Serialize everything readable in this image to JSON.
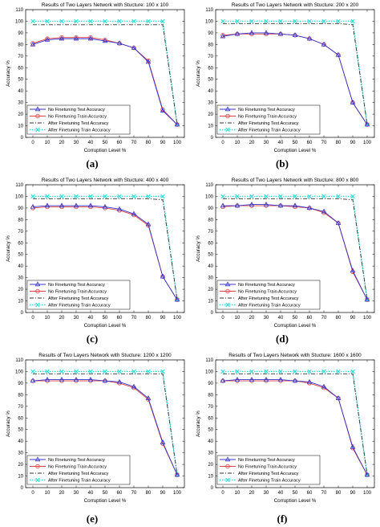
{
  "chart_data": [
    {
      "type": "line",
      "title": "Results of Two Layers Network with Stucture: 100 x 100",
      "xlabel": "Corruption Level %",
      "ylabel": "Accuracy %",
      "caption": "(a)",
      "xlim": [
        -5,
        105
      ],
      "ylim": [
        0,
        110
      ],
      "x": [
        0,
        10,
        20,
        30,
        40,
        50,
        60,
        70,
        80,
        90,
        100
      ],
      "series": [
        {
          "name": "No Finetuning Test Accuracy",
          "color": "#3333cc",
          "marker": "triangle",
          "dash": "solid",
          "values": [
            80,
            84,
            85,
            85,
            85,
            83,
            81,
            77,
            65,
            23,
            11
          ]
        },
        {
          "name": "No Finetuning Train Accuracy",
          "color": "#e04040",
          "marker": "circle",
          "dash": "solid",
          "values": [
            81,
            85,
            86,
            86,
            86,
            84,
            81,
            77,
            66,
            24,
            11
          ]
        },
        {
          "name": "After Finetuning Test Accuracy",
          "color": "#333333",
          "marker": "none",
          "dash": "dashdot",
          "values": [
            97,
            97,
            97,
            97,
            97,
            97,
            97,
            97,
            97,
            97,
            11
          ]
        },
        {
          "name": "After Finetuning Train Accuracy",
          "color": "#33dddd",
          "marker": "x",
          "dash": "dotted",
          "values": [
            100,
            100,
            100,
            100,
            100,
            100,
            100,
            100,
            100,
            100,
            11
          ]
        }
      ]
    },
    {
      "type": "line",
      "title": "Results of Two Layers Network with Stucture: 200 x 200",
      "xlabel": "Corruption Level %",
      "ylabel": "Accuracy %",
      "caption": "(b)",
      "xlim": [
        -5,
        105
      ],
      "ylim": [
        0,
        110
      ],
      "x": [
        0,
        10,
        20,
        30,
        40,
        50,
        60,
        70,
        80,
        90,
        100
      ],
      "series": [
        {
          "name": "No Finetuning Test Accuracy",
          "color": "#3333cc",
          "marker": "triangle",
          "dash": "solid",
          "values": [
            87,
            89,
            90,
            90,
            89,
            88,
            85,
            80,
            71,
            30,
            11
          ]
        },
        {
          "name": "No Finetuning Train Accuracy",
          "color": "#e04040",
          "marker": "circle",
          "dash": "solid",
          "values": [
            88,
            89,
            89,
            89,
            89,
            88,
            85,
            80,
            71,
            30,
            11
          ]
        },
        {
          "name": "After Finetuning Test Accuracy",
          "color": "#333333",
          "marker": "none",
          "dash": "dashdot",
          "values": [
            98,
            98,
            98,
            98,
            98,
            98,
            98,
            98,
            98,
            97,
            11
          ]
        },
        {
          "name": "After Finetuning Train Accuracy",
          "color": "#33dddd",
          "marker": "x",
          "dash": "dotted",
          "values": [
            100,
            100,
            100,
            100,
            100,
            100,
            100,
            100,
            100,
            100,
            11
          ]
        }
      ]
    },
    {
      "type": "line",
      "title": "Results of Two Layers Network with Stucture: 400 x 400",
      "xlabel": "Corruption Level %",
      "ylabel": "Accuracy %",
      "caption": "(c)",
      "xlim": [
        -5,
        105
      ],
      "ylim": [
        0,
        110
      ],
      "x": [
        0,
        10,
        20,
        30,
        40,
        50,
        60,
        70,
        80,
        90,
        100
      ],
      "series": [
        {
          "name": "No Finetuning Test Accuracy",
          "color": "#3333cc",
          "marker": "triangle",
          "dash": "solid",
          "values": [
            91,
            92,
            92,
            92,
            92,
            91,
            89,
            85,
            76,
            31,
            11
          ]
        },
        {
          "name": "No Finetuning Train Accuracy",
          "color": "#e04040",
          "marker": "circle",
          "dash": "solid",
          "values": [
            90,
            91,
            91,
            91,
            91,
            90,
            88,
            84,
            75,
            31,
            11
          ]
        },
        {
          "name": "After Finetuning Test Accuracy",
          "color": "#333333",
          "marker": "none",
          "dash": "dashdot",
          "values": [
            98,
            98,
            98,
            98,
            98,
            98,
            98,
            98,
            98,
            97,
            11
          ]
        },
        {
          "name": "After Finetuning Train Accuracy",
          "color": "#33dddd",
          "marker": "x",
          "dash": "dotted",
          "values": [
            100,
            100,
            100,
            100,
            100,
            100,
            100,
            100,
            100,
            100,
            11
          ]
        }
      ]
    },
    {
      "type": "line",
      "title": "Results of Two Layers Network with Stucture: 800 x 800",
      "xlabel": "Corruption Level %",
      "ylabel": "Accuracy %",
      "caption": "(d)",
      "xlim": [
        -5,
        105
      ],
      "ylim": [
        0,
        110
      ],
      "x": [
        0,
        10,
        20,
        30,
        40,
        50,
        60,
        70,
        80,
        90,
        100
      ],
      "series": [
        {
          "name": "No Finetuning Test Accuracy",
          "color": "#3333cc",
          "marker": "triangle",
          "dash": "solid",
          "values": [
            92,
            92,
            93,
            93,
            92,
            92,
            90,
            87,
            77,
            36,
            11
          ]
        },
        {
          "name": "No Finetuning Train Accuracy",
          "color": "#e04040",
          "marker": "circle",
          "dash": "solid",
          "values": [
            91,
            92,
            92,
            92,
            92,
            91,
            90,
            86,
            77,
            35,
            11
          ]
        },
        {
          "name": "After Finetuning Test Accuracy",
          "color": "#333333",
          "marker": "none",
          "dash": "dashdot",
          "values": [
            98,
            98,
            98,
            98,
            98,
            98,
            98,
            98,
            98,
            97,
            11
          ]
        },
        {
          "name": "After Finetuning Train Accuracy",
          "color": "#33dddd",
          "marker": "x",
          "dash": "dotted",
          "values": [
            100,
            100,
            100,
            100,
            100,
            100,
            100,
            100,
            100,
            100,
            11
          ]
        }
      ]
    },
    {
      "type": "line",
      "title": "Results of Two Layers Network with Stucture: 1200 x 1200",
      "xlabel": "Corruption Level %",
      "ylabel": "Accuracy %",
      "caption": "(e)",
      "xlim": [
        -5,
        105
      ],
      "ylim": [
        0,
        110
      ],
      "x": [
        0,
        10,
        20,
        30,
        40,
        50,
        60,
        70,
        80,
        90,
        100
      ],
      "series": [
        {
          "name": "No Finetuning Test Accuracy",
          "color": "#3333cc",
          "marker": "triangle",
          "dash": "solid",
          "values": [
            92,
            93,
            93,
            93,
            93,
            92,
            91,
            87,
            77,
            39,
            11
          ]
        },
        {
          "name": "No Finetuning Train Accuracy",
          "color": "#e04040",
          "marker": "circle",
          "dash": "solid",
          "values": [
            92,
            92,
            92,
            92,
            92,
            92,
            90,
            86,
            76,
            38,
            11
          ]
        },
        {
          "name": "After Finetuning Test Accuracy",
          "color": "#333333",
          "marker": "none",
          "dash": "dashdot",
          "values": [
            98,
            98,
            98,
            98,
            98,
            98,
            98,
            98,
            98,
            98,
            11
          ]
        },
        {
          "name": "After Finetuning Train Accuracy",
          "color": "#33dddd",
          "marker": "x",
          "dash": "dotted",
          "values": [
            100,
            100,
            100,
            100,
            100,
            100,
            100,
            100,
            100,
            100,
            11
          ]
        }
      ]
    },
    {
      "type": "line",
      "title": "Results of Two Layers Network with Stucture: 1600 x 1600",
      "xlabel": "Corruption Level %",
      "ylabel": "Accuracy %",
      "caption": "(f)",
      "xlim": [
        -5,
        105
      ],
      "ylim": [
        0,
        110
      ],
      "x": [
        0,
        10,
        20,
        30,
        40,
        50,
        60,
        70,
        80,
        90,
        100
      ],
      "series": [
        {
          "name": "No Finetuning Test Accuracy",
          "color": "#3333cc",
          "marker": "triangle",
          "dash": "solid",
          "values": [
            92,
            93,
            93,
            93,
            93,
            92,
            91,
            87,
            77,
            35,
            11
          ]
        },
        {
          "name": "No Finetuning Train Accuracy",
          "color": "#e04040",
          "marker": "circle",
          "dash": "solid",
          "values": [
            92,
            92,
            92,
            92,
            92,
            92,
            90,
            86,
            77,
            34,
            11
          ]
        },
        {
          "name": "After Finetuning Test Accuracy",
          "color": "#333333",
          "marker": "none",
          "dash": "dashdot",
          "values": [
            98,
            98,
            98,
            98,
            98,
            98,
            98,
            98,
            98,
            98,
            11
          ]
        },
        {
          "name": "After Finetuning Train Accuracy",
          "color": "#33dddd",
          "marker": "x",
          "dash": "dotted",
          "values": [
            100,
            100,
            100,
            100,
            100,
            100,
            100,
            100,
            100,
            100,
            11
          ]
        }
      ]
    }
  ]
}
